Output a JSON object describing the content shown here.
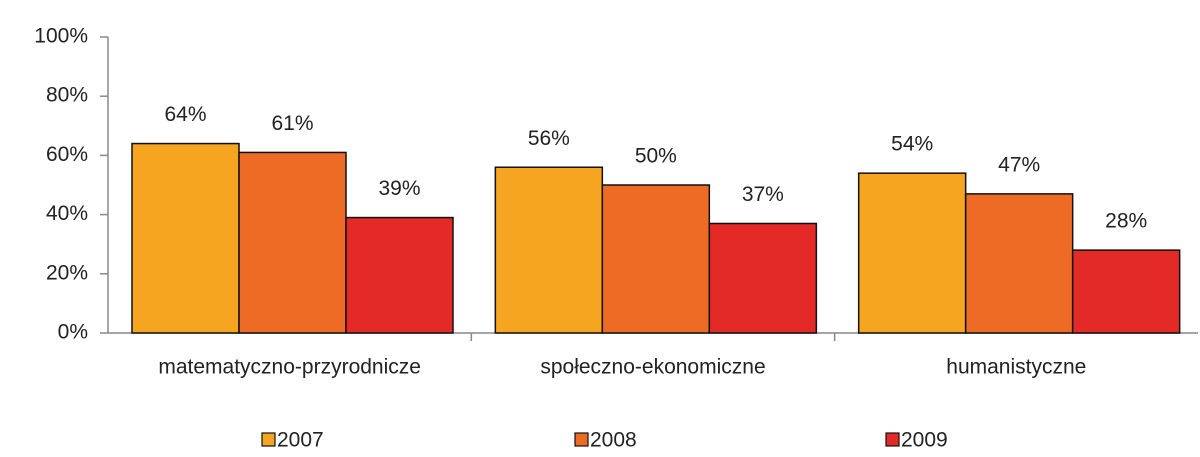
{
  "chart_data": {
    "type": "bar",
    "categories": [
      "matematyczno-przyrodnicze",
      "społeczno-ekonomiczne",
      "humanistyczne"
    ],
    "series": [
      {
        "name": "2007",
        "color": "#f5a51f",
        "values": [
          64,
          56,
          54
        ],
        "value_labels": [
          "64%",
          "56%",
          "54%"
        ]
      },
      {
        "name": "2008",
        "color": "#ee6b26",
        "values": [
          61,
          50,
          47
        ],
        "value_labels": [
          "61%",
          "50%",
          "47%"
        ]
      },
      {
        "name": "2009",
        "color": "#e42a26",
        "values": [
          39,
          37,
          28
        ],
        "value_labels": [
          "39%",
          "37%",
          "28%"
        ]
      }
    ],
    "ylim": [
      0,
      100
    ],
    "yticks": [
      {
        "value": 0,
        "label": "0%"
      },
      {
        "value": 20,
        "label": "20%"
      },
      {
        "value": 40,
        "label": "40%"
      },
      {
        "value": 60,
        "label": "60%"
      },
      {
        "value": 80,
        "label": "80%"
      },
      {
        "value": 100,
        "label": "100%"
      }
    ],
    "legend": "bottom"
  }
}
